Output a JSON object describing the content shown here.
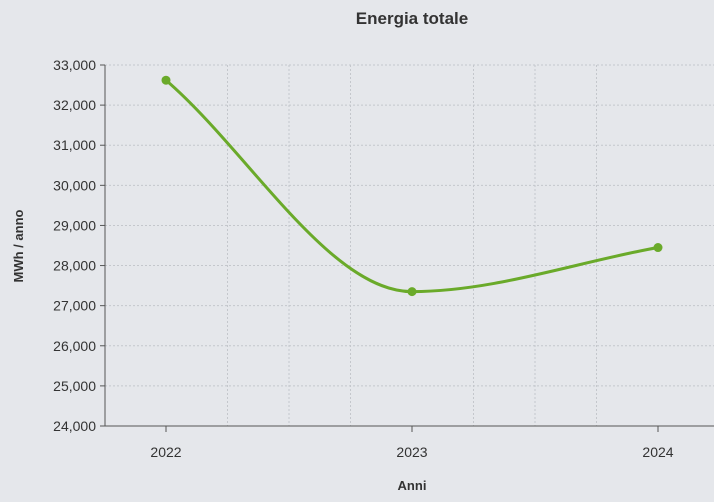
{
  "chart_data": {
    "type": "line",
    "title": "Energia totale",
    "xlabel": "Anni",
    "ylabel": "MWh / anno",
    "categories": [
      "2022",
      "2023",
      "2024"
    ],
    "series": [
      {
        "values": [
          32620,
          27350,
          28450
        ]
      }
    ],
    "ylim": [
      24000,
      33000
    ],
    "yticks": [
      24000,
      25000,
      26000,
      27000,
      28000,
      29000,
      30000,
      31000,
      32000,
      33000
    ],
    "ytick_labels": [
      "24,000",
      "25,000",
      "26,000",
      "27,000",
      "28,000",
      "29,000",
      "30,000",
      "31,000",
      "32,000",
      "33,000"
    ],
    "grid": true,
    "curve": "smooth",
    "colors": {
      "line": "#6aaa2a",
      "grid": "#c4c7cc",
      "axis": "#555555",
      "background": "#e5e7eb"
    }
  }
}
